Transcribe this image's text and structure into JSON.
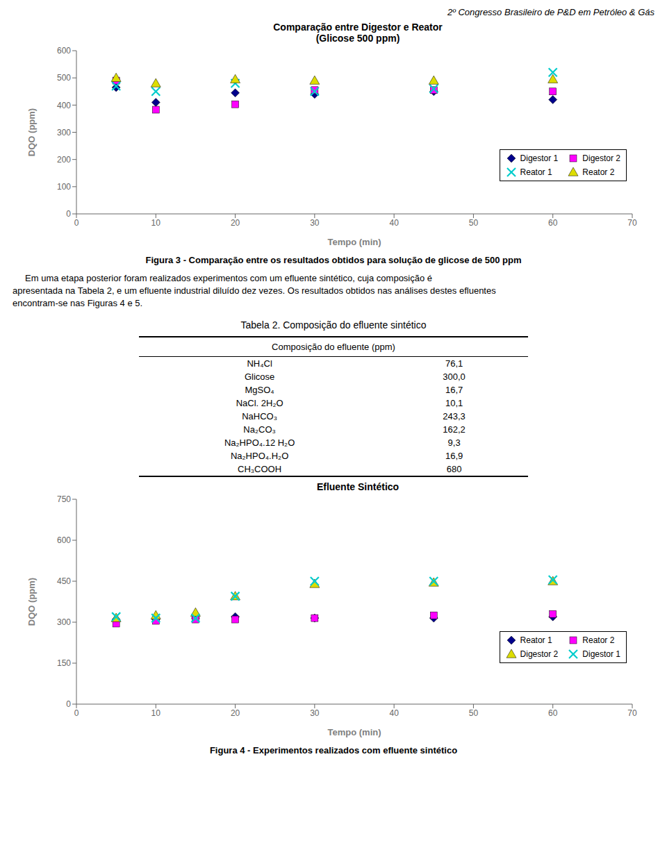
{
  "chart_data": [
    {
      "type": "header",
      "annotations": [
        "2º Congresso Brasileiro de P&D em Petróleo & Gás"
      ]
    },
    {
      "type": "scatter",
      "title": "Comparação entre Digestor e Reator\n(Glicose 500 ppm)",
      "xlabel": "Tempo (min)",
      "ylabel": "DQO (ppm)",
      "x": [
        5,
        10,
        20,
        30,
        45,
        60
      ],
      "xlim": [
        0,
        70
      ],
      "xticks": [
        0,
        10,
        20,
        30,
        40,
        50,
        60,
        70
      ],
      "ylim": [
        0,
        600
      ],
      "yticks": [
        0,
        100,
        200,
        300,
        400,
        500,
        600
      ],
      "grid": false,
      "legend": "lower right",
      "series": [
        {
          "name": "Digestor 1",
          "color": "#00008B",
          "marker": "diamond",
          "values": [
            465,
            410,
            445,
            440,
            450,
            420
          ]
        },
        {
          "name": "Digestor 2",
          "color": "#FF00FF",
          "marker": "square",
          "values": [
            490,
            383,
            403,
            455,
            455,
            450
          ]
        },
        {
          "name": "Reator 1",
          "color": "#00CCCC",
          "marker": "x",
          "values": [
            470,
            450,
            480,
            450,
            460,
            520
          ]
        },
        {
          "name": "Reator 2",
          "color": "#DDDD00",
          "marker": "triangle",
          "values": [
            500,
            480,
            495,
            490,
            490,
            495
          ]
        }
      ]
    },
    {
      "type": "caption",
      "annotations": [
        "Figura 3 - Comparação entre os resultados obtidos para solução de glicose de 500 ppm"
      ]
    },
    {
      "type": "text",
      "annotations": [
        "     Em uma etapa posterior foram realizados experimentos com um efluente sintético, cuja composição é",
        "apresentada na Tabela 2, e um efluente industrial diluído dez vezes. Os resultados obtidos nas análises destes efluentes",
        "encontram-se nas Figuras 4 e 5."
      ]
    },
    {
      "type": "table",
      "title": "Tabela 2.  Composição do efluente sintético",
      "subtitle": "Composição do efluente (ppm)",
      "categories": [
        "NH₄Cl",
        "Glicose",
        "MgSO₄",
        "NaCl. 2H₂O",
        "NaHCO₃",
        "Na₂CO₃",
        "Na₂HPO₄.12 H₂O",
        "Na₂HPO₄.H₂O",
        "CH₃COOH"
      ],
      "values": [
        76.1,
        300.0,
        16.7,
        10.1,
        243.3,
        162.2,
        9.3,
        16.9,
        680
      ],
      "value_labels": [
        "76,1",
        "300,0",
        "16,7",
        "10,1",
        "243,3",
        "162,2",
        "9,3",
        "16,9",
        "680"
      ]
    },
    {
      "type": "scatter",
      "title": "Efluente Sintético",
      "xlabel": "Tempo (min)",
      "ylabel": "DQO (ppm)",
      "x": [
        5,
        10,
        15,
        20,
        30,
        45,
        60
      ],
      "xlim": [
        0,
        70
      ],
      "xticks": [
        0,
        10,
        20,
        30,
        40,
        50,
        60,
        70
      ],
      "ylim": [
        0,
        750
      ],
      "yticks": [
        0,
        150,
        300,
        450,
        600,
        750
      ],
      "grid": false,
      "legend": "lower right",
      "series": [
        {
          "name": "Reator 1",
          "color": "#00008B",
          "marker": "diamond",
          "values": [
            310,
            310,
            315,
            320,
            315,
            315,
            320
          ]
        },
        {
          "name": "Reator 2",
          "color": "#FF00FF",
          "marker": "square",
          "values": [
            295,
            305,
            310,
            310,
            315,
            325,
            330
          ]
        },
        {
          "name": "Digestor 2",
          "color": "#DDDD00",
          "marker": "triangle",
          "values": [
            315,
            325,
            335,
            395,
            440,
            445,
            450
          ]
        },
        {
          "name": "Digestor 1",
          "color": "#00CCCC",
          "marker": "x",
          "values": [
            320,
            315,
            315,
            395,
            450,
            450,
            455
          ]
        }
      ]
    },
    {
      "type": "caption",
      "annotations": [
        "Figura 4 - Experimentos realizados com efluente sintético"
      ]
    }
  ]
}
